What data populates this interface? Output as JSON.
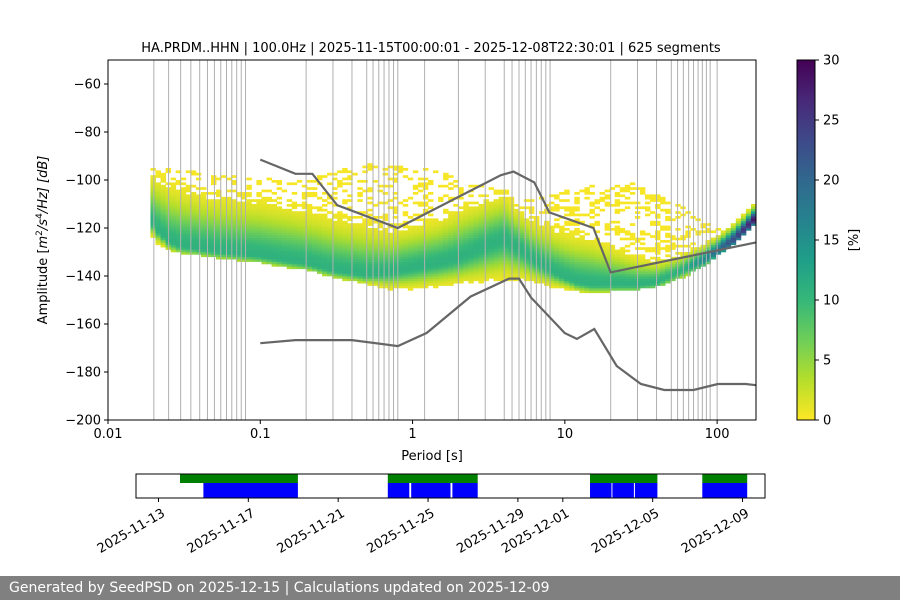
{
  "chart_data": {
    "type": "heatmap",
    "title": "HA.PRDM..HHN | 100.0Hz | 2025-11-15T00:00:01 - 2025-12-08T22:30:01 | 625 segments",
    "xlabel": "Period [s]",
    "ylabel_prefix": "Amplitude [",
    "ylabel_math": "m",
    "ylabel_sup1": "2",
    "ylabel_mid": "/s",
    "ylabel_sup2": "4",
    "ylabel_suffix": "/Hz] [dB]",
    "x_scale": "log",
    "xlim": [
      0.01,
      180
    ],
    "ylim": [
      -200,
      -50
    ],
    "x_ticks": [
      {
        "value": 0.01,
        "label": "0.01"
      },
      {
        "value": 0.1,
        "label": "0.1"
      },
      {
        "value": 1,
        "label": "1"
      },
      {
        "value": 10,
        "label": "10"
      },
      {
        "value": 100,
        "label": "100"
      }
    ],
    "y_ticks": [
      {
        "value": -60,
        "label": "−60"
      },
      {
        "value": -80,
        "label": "−80"
      },
      {
        "value": -100,
        "label": "−100"
      },
      {
        "value": -120,
        "label": "−120"
      },
      {
        "value": -140,
        "label": "−140"
      },
      {
        "value": -160,
        "label": "−160"
      },
      {
        "value": -180,
        "label": "−180"
      },
      {
        "value": -200,
        "label": "−200"
      }
    ],
    "grid": "vertical at period bins",
    "period_grid": [
      0.02,
      0.025,
      0.03,
      0.035,
      0.04,
      0.045,
      0.05,
      0.055,
      0.06,
      0.065,
      0.07,
      0.075,
      0.08,
      0.2,
      0.3,
      0.4,
      0.5,
      0.55,
      0.6,
      0.65,
      0.7,
      0.75,
      0.8,
      1.2,
      2,
      3,
      4,
      4.5,
      5,
      5.5,
      6,
      6.5,
      7,
      7.5,
      8,
      20,
      30,
      40,
      50,
      55,
      60,
      65,
      70,
      75,
      80,
      85,
      90,
      100
    ],
    "density_band": {
      "period": [
        0.019,
        0.02,
        0.025,
        0.03,
        0.04,
        0.05,
        0.07,
        0.1,
        0.15,
        0.2,
        0.3,
        0.5,
        0.7,
        1,
        1.5,
        2,
        3,
        4,
        5,
        6,
        8,
        10,
        12,
        15,
        20,
        30,
        40,
        60,
        80,
        100,
        130,
        180
      ],
      "mode_db": [
        -114,
        -120,
        -126,
        -128,
        -129,
        -130,
        -131,
        -132,
        -134,
        -135,
        -138,
        -140,
        -139,
        -137,
        -135,
        -133,
        -128,
        -125,
        -129,
        -133,
        -138,
        -141,
        -143,
        -144,
        -144,
        -144,
        -143,
        -138,
        -134,
        -130,
        -125,
        -116
      ],
      "upper_db": [
        -95,
        -96,
        -99,
        -101,
        -103,
        -104,
        -105,
        -106,
        -108,
        -110,
        -113,
        -116,
        -119,
        -117,
        -114,
        -110,
        -106,
        -104,
        -111,
        -115,
        -118,
        -120,
        -121,
        -122,
        -126,
        -131,
        -133,
        -130,
        -127,
        -123,
        -118,
        -110
      ],
      "lower_db": [
        -120,
        -126,
        -130,
        -131,
        -132,
        -133,
        -134,
        -135,
        -137,
        -138,
        -141,
        -144,
        -146,
        -146,
        -145,
        -144,
        -143,
        -142,
        -142,
        -143,
        -145,
        -146,
        -147,
        -147,
        -147,
        -146,
        -145,
        -141,
        -137,
        -132,
        -127,
        -118
      ],
      "sparse_upper_db": [
        -95,
        -95,
        -96,
        -96,
        -97,
        -98,
        -99,
        -100,
        -100,
        -100,
        -97,
        -94,
        -94,
        -95,
        -97,
        -100,
        -103,
        -105,
        -108,
        -109,
        -107,
        -105,
        -104,
        -103,
        -102,
        -102,
        -106,
        -112,
        -118,
        -120,
        -118,
        -112
      ]
    },
    "nhnm": {
      "period": [
        0.1,
        0.17,
        0.22,
        0.32,
        0.8,
        3.8,
        4.6,
        6.3,
        7.9,
        15.4,
        20,
        354.8
      ],
      "db": [
        -91.5,
        -97.4,
        -97.4,
        -110.5,
        -120,
        -98,
        -96.5,
        -101,
        -113.5,
        -120,
        -138.5,
        -126
      ]
    },
    "nlnm": {
      "period": [
        0.1,
        0.17,
        0.4,
        0.8,
        1.24,
        2.4,
        4.3,
        5,
        6,
        10,
        12,
        15.6,
        21.9,
        31.6,
        45,
        70,
        101,
        154,
        180
      ],
      "db": [
        -168,
        -166.7,
        -166.7,
        -169.2,
        -163.7,
        -148.6,
        -141.1,
        -141.1,
        -149,
        -163.8,
        -166.2,
        -162.1,
        -177.5,
        -185,
        -187.5,
        -187.5,
        -185,
        -185,
        -185.5
      ]
    },
    "colorbar": {
      "label": "[%]",
      "range": [
        0,
        30
      ],
      "ticks": [
        {
          "value": 0,
          "label": "0"
        },
        {
          "value": 5,
          "label": "5"
        },
        {
          "value": 10,
          "label": "10"
        },
        {
          "value": 15,
          "label": "15"
        },
        {
          "value": 20,
          "label": "20"
        },
        {
          "value": 25,
          "label": "25"
        },
        {
          "value": 30,
          "label": "30"
        }
      ],
      "colormap": [
        "#fde725",
        "#b5de2b",
        "#6ece58",
        "#35b779",
        "#1f9e89",
        "#26828e",
        "#31688e",
        "#3e4989",
        "#482878",
        "#440154"
      ]
    },
    "colors": {
      "noise_model": "#666666",
      "coverage_available": "#008000",
      "coverage_used": "#0000ff",
      "axes": "#000000",
      "grid": "#b0b0b0",
      "footer_bg": "#808080"
    },
    "timeline": {
      "range": [
        "2025-11-12",
        "2025-12-10"
      ],
      "tick_labels": [
        {
          "date": "2025-11-13",
          "label": "2025-11-13"
        },
        {
          "date": "2025-11-17",
          "label": "2025-11-17"
        },
        {
          "date": "2025-11-21",
          "label": "2025-11-21"
        },
        {
          "date": "2025-11-25",
          "label": "2025-11-25"
        },
        {
          "date": "2025-11-29",
          "label": "2025-11-29"
        },
        {
          "date": "2025-12-01",
          "label": "2025-12-01"
        },
        {
          "date": "2025-12-05",
          "label": "2025-12-05"
        },
        {
          "date": "2025-12-09",
          "label": "2025-12-09"
        }
      ],
      "available": [
        [
          "2025-11-13T23:00",
          "2025-11-19T05:00"
        ],
        [
          "2025-11-23T05:00",
          "2025-11-27T05:00"
        ],
        [
          "2025-12-02T05:00",
          "2025-12-05T05:00"
        ],
        [
          "2025-12-07T05:00",
          "2025-12-09T05:00"
        ]
      ],
      "used": [
        [
          "2025-11-15T00:00",
          "2025-11-19T05:00"
        ],
        [
          "2025-11-23T05:00",
          "2025-11-24T04:00"
        ],
        [
          "2025-11-24T06:00",
          "2025-11-26T00:00"
        ],
        [
          "2025-11-26T02:00",
          "2025-11-27T05:00"
        ],
        [
          "2025-12-02T05:00",
          "2025-12-03T04:00"
        ],
        [
          "2025-12-03T05:00",
          "2025-12-04T04:00"
        ],
        [
          "2025-12-04T05:00",
          "2025-12-05T05:00"
        ],
        [
          "2025-12-07T05:00",
          "2025-12-09T05:00"
        ]
      ]
    }
  },
  "footer": {
    "text": "Generated by SeedPSD on 2025-12-15 | Calculations updated on 2025-12-09"
  }
}
